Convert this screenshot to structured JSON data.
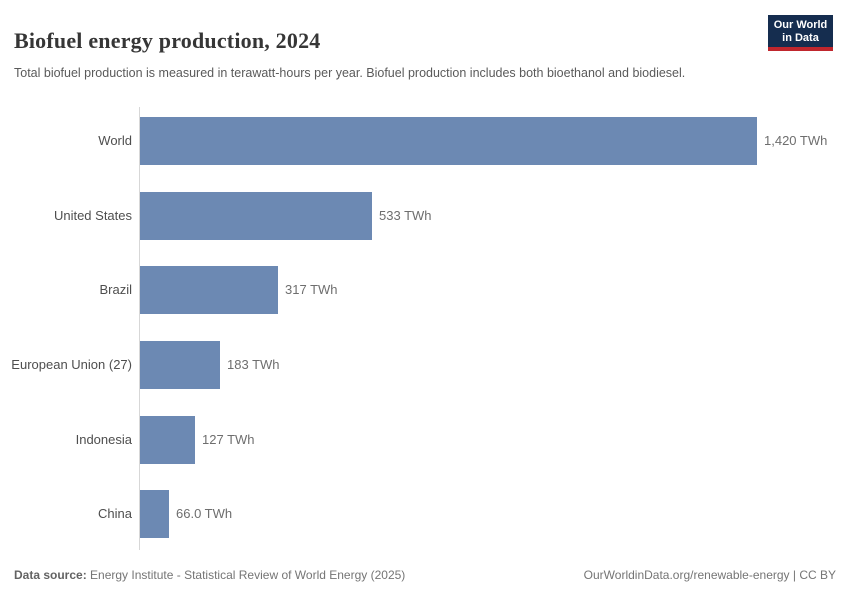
{
  "header": {
    "title": "Biofuel energy production, 2024",
    "subtitle": "Total biofuel production is measured in terawatt-hours per year. Biofuel production includes both bioethanol and biodiesel.",
    "logo": {
      "line1": "Our World",
      "line2": "in Data"
    }
  },
  "chart_data": {
    "type": "bar",
    "orientation": "horizontal",
    "title": "Biofuel energy production, 2024",
    "unit": "TWh",
    "categories": [
      "World",
      "United States",
      "Brazil",
      "European Union (27)",
      "Indonesia",
      "China"
    ],
    "values": [
      1420,
      533,
      317,
      183,
      127,
      66
    ],
    "value_labels": [
      "1,420 TWh",
      "533 TWh",
      "317 TWh",
      "183 TWh",
      "127 TWh",
      "66.0 TWh"
    ],
    "xlim": [
      0,
      1420
    ],
    "grid": false,
    "legend": false,
    "bar_color": "#6c89b3",
    "axis_color": "#d7d7d7"
  },
  "footer": {
    "source_label": "Data source:",
    "source_text": " Energy Institute - Statistical Review of World Energy (2025)",
    "right_text": "OurWorldinData.org/renewable-energy | CC BY"
  },
  "colors": {
    "logo_navy": "#152d4f",
    "logo_red": "#c0262d",
    "bar_blue": "#6c89b3",
    "title_text": "#363636",
    "subtitle_text": "#5a5a5a",
    "category_text": "#4e4e4e",
    "value_text": "#6e6e6e",
    "footer_text": "#757575"
  }
}
